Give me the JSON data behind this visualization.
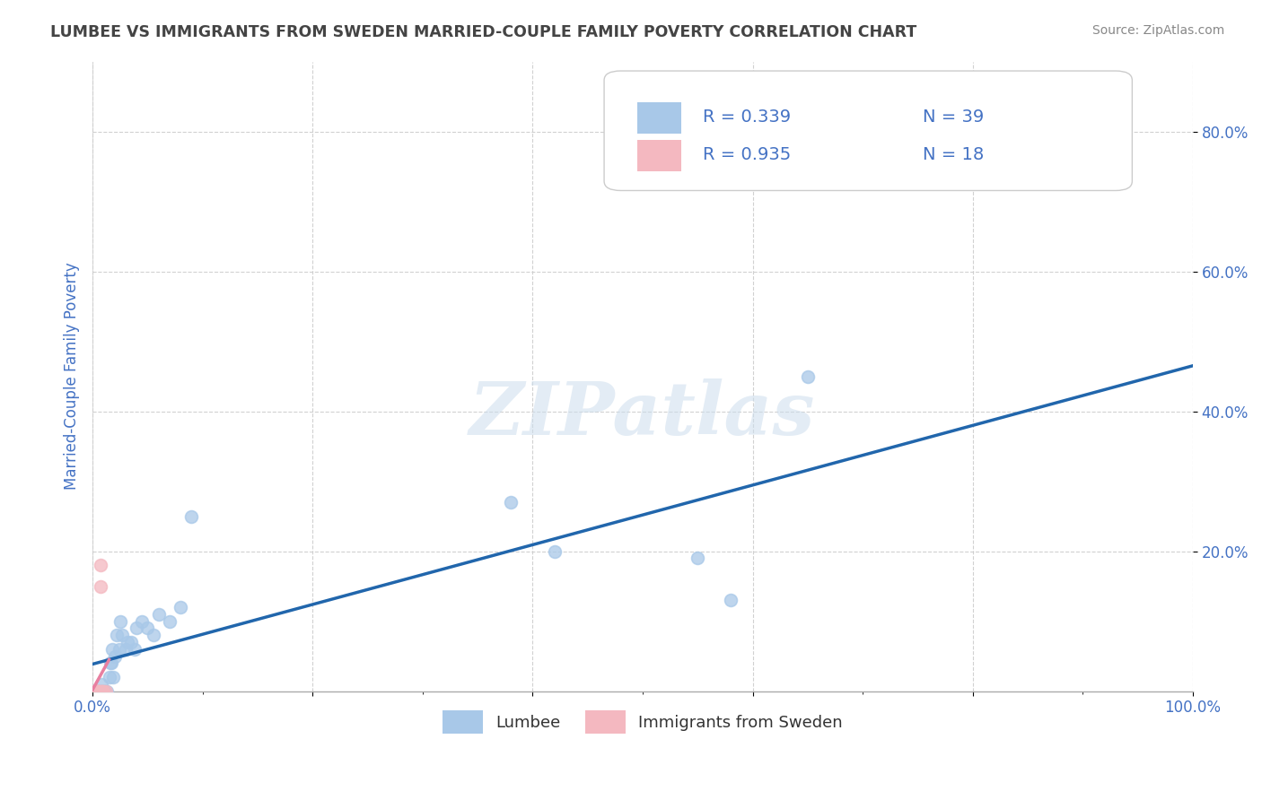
{
  "title": "LUMBEE VS IMMIGRANTS FROM SWEDEN MARRIED-COUPLE FAMILY POVERTY CORRELATION CHART",
  "source": "Source: ZipAtlas.com",
  "ylabel": "Married-Couple Family Poverty",
  "xlim": [
    0,
    1.0
  ],
  "ylim": [
    0,
    0.9
  ],
  "xticks": [
    0.0,
    0.2,
    0.4,
    0.6,
    0.8,
    1.0
  ],
  "xticklabels_major": [
    "0.0%",
    "",
    "",
    "",
    "",
    "100.0%"
  ],
  "yticks": [
    0.2,
    0.4,
    0.6,
    0.8
  ],
  "yticklabels": [
    "20.0%",
    "40.0%",
    "60.0%",
    "80.0%"
  ],
  "lumbee_color": "#a8c8e8",
  "sweden_color": "#f4b8c0",
  "trendline_lumbee_color": "#2166ac",
  "trendline_sweden_color": "#e87fa0",
  "legend_lumbee_label": "Lumbee",
  "legend_sweden_label": "Immigrants from Sweden",
  "R_lumbee": 0.339,
  "N_lumbee": 39,
  "R_sweden": 0.935,
  "N_sweden": 18,
  "lumbee_x": [
    0.0,
    0.003,
    0.004,
    0.005,
    0.006,
    0.007,
    0.008,
    0.009,
    0.01,
    0.011,
    0.012,
    0.013,
    0.015,
    0.016,
    0.017,
    0.018,
    0.019,
    0.02,
    0.022,
    0.024,
    0.025,
    0.027,
    0.03,
    0.032,
    0.035,
    0.038,
    0.04,
    0.045,
    0.05,
    0.055,
    0.06,
    0.07,
    0.08,
    0.09,
    0.38,
    0.42,
    0.55,
    0.58,
    0.65
  ],
  "lumbee_y": [
    0.0,
    0.0,
    0.0,
    0.0,
    0.0,
    0.0,
    0.01,
    0.0,
    0.0,
    0.0,
    0.0,
    0.0,
    0.02,
    0.04,
    0.04,
    0.06,
    0.02,
    0.05,
    0.08,
    0.06,
    0.1,
    0.08,
    0.06,
    0.07,
    0.07,
    0.06,
    0.09,
    0.1,
    0.09,
    0.08,
    0.11,
    0.1,
    0.12,
    0.25,
    0.27,
    0.2,
    0.19,
    0.13,
    0.45
  ],
  "sweden_x": [
    0.001,
    0.002,
    0.002,
    0.003,
    0.003,
    0.004,
    0.004,
    0.005,
    0.005,
    0.006,
    0.006,
    0.007,
    0.007,
    0.008,
    0.008,
    0.009,
    0.01,
    0.012
  ],
  "sweden_y": [
    0.0,
    0.0,
    0.0,
    0.0,
    0.0,
    0.0,
    0.0,
    0.0,
    0.0,
    0.0,
    0.0,
    0.15,
    0.18,
    0.0,
    0.0,
    0.0,
    0.0,
    0.0
  ],
  "watermark": "ZIPatlas",
  "background_color": "#ffffff",
  "grid_color": "#cccccc",
  "title_color": "#444444",
  "tick_color": "#4472c4"
}
